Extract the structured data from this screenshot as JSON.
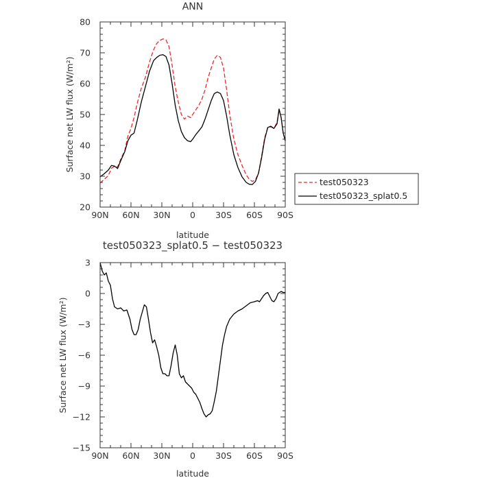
{
  "colors": {
    "series_test050323": "#e8282b",
    "series_splat": "#000000",
    "axis": "#333333"
  },
  "chart_data": [
    {
      "type": "line",
      "title": "ANN",
      "xlabel": "latitude",
      "ylabel": "Surface net LW flux (W/m²)",
      "x_ticks": [
        {
          "v": 90,
          "label": "90N"
        },
        {
          "v": 60,
          "label": "60N"
        },
        {
          "v": 30,
          "label": "30N"
        },
        {
          "v": 0,
          "label": "0"
        },
        {
          "v": -30,
          "label": "30S"
        },
        {
          "v": -60,
          "label": "60S"
        },
        {
          "v": -90,
          "label": "90S"
        }
      ],
      "xlim": [
        90,
        -90
      ],
      "ylim": [
        20,
        80
      ],
      "y_ticks": [
        20,
        30,
        40,
        50,
        60,
        70,
        80
      ],
      "legend_position": "right",
      "series": [
        {
          "name": "test050323",
          "style": "dashed",
          "points": [
            [
              90,
              27.8
            ],
            [
              86,
              29.0
            ],
            [
              82,
              30.2
            ],
            [
              79,
              32.6
            ],
            [
              76,
              33.2
            ],
            [
              73,
              33.0
            ],
            [
              70,
              35.5
            ],
            [
              66,
              38.3
            ],
            [
              63,
              43.0
            ],
            [
              60,
              45.5
            ],
            [
              57,
              49.0
            ],
            [
              54,
              53.5
            ],
            [
              50,
              58.5
            ],
            [
              46,
              62.0
            ],
            [
              42,
              67.0
            ],
            [
              38,
              71.0
            ],
            [
              35,
              73.0
            ],
            [
              32,
              74.0
            ],
            [
              29,
              74.5
            ],
            [
              26,
              74.2
            ],
            [
              23,
              72.0
            ],
            [
              20,
              66.0
            ],
            [
              17,
              59.0
            ],
            [
              14,
              54.0
            ],
            [
              11,
              50.0
            ],
            [
              8,
              48.5
            ],
            [
              5,
              49.5
            ],
            [
              2,
              49.0
            ],
            [
              0,
              50.0
            ],
            [
              -3,
              51.5
            ],
            [
              -6,
              53.0
            ],
            [
              -9,
              55.0
            ],
            [
              -12,
              58.0
            ],
            [
              -15,
              62.0
            ],
            [
              -18,
              65.0
            ],
            [
              -21,
              68.0
            ],
            [
              -24,
              69.2
            ],
            [
              -27,
              68.5
            ],
            [
              -30,
              65.0
            ],
            [
              -33,
              58.0
            ],
            [
              -36,
              50.0
            ],
            [
              -40,
              42.0
            ],
            [
              -44,
              37.0
            ],
            [
              -48,
              33.5
            ],
            [
              -52,
              30.5
            ],
            [
              -55,
              29.0
            ],
            [
              -58,
              28.3
            ],
            [
              -61,
              28.8
            ],
            [
              -64,
              31.0
            ],
            [
              -67,
              36.5
            ],
            [
              -70,
              42.5
            ],
            [
              -73,
              45.8
            ],
            [
              -76,
              46.0
            ],
            [
              -79,
              45.5
            ],
            [
              -82,
              47.5
            ],
            [
              -84,
              51.5
            ],
            [
              -86,
              49.0
            ],
            [
              -88,
              44.0
            ],
            [
              -90,
              41.5
            ]
          ]
        },
        {
          "name": "test050323_splat0.5",
          "style": "solid",
          "points": [
            [
              90,
              29.8
            ],
            [
              86,
              30.8
            ],
            [
              82,
              32.0
            ],
            [
              79,
              33.5
            ],
            [
              76,
              33.3
            ],
            [
              73,
              32.5
            ],
            [
              70,
              35.0
            ],
            [
              66,
              38.0
            ],
            [
              63,
              41.5
            ],
            [
              60,
              43.3
            ],
            [
              57,
              44.0
            ],
            [
              54,
              48.0
            ],
            [
              50,
              54.0
            ],
            [
              46,
              59.0
            ],
            [
              42,
              64.0
            ],
            [
              38,
              67.5
            ],
            [
              35,
              68.5
            ],
            [
              32,
              69.2
            ],
            [
              29,
              69.4
            ],
            [
              26,
              68.8
            ],
            [
              23,
              66.0
            ],
            [
              20,
              60.0
            ],
            [
              17,
              53.0
            ],
            [
              14,
              48.0
            ],
            [
              11,
              44.5
            ],
            [
              8,
              42.5
            ],
            [
              5,
              41.5
            ],
            [
              2,
              41.2
            ],
            [
              0,
              42.0
            ],
            [
              -3,
              43.5
            ],
            [
              -6,
              44.7
            ],
            [
              -9,
              46.0
            ],
            [
              -12,
              48.5
            ],
            [
              -15,
              51.5
            ],
            [
              -18,
              54.5
            ],
            [
              -21,
              56.8
            ],
            [
              -24,
              57.3
            ],
            [
              -27,
              56.8
            ],
            [
              -30,
              54.5
            ],
            [
              -33,
              49.5
            ],
            [
              -36,
              43.5
            ],
            [
              -40,
              37.0
            ],
            [
              -44,
              32.8
            ],
            [
              -48,
              29.8
            ],
            [
              -52,
              28.0
            ],
            [
              -55,
              27.4
            ],
            [
              -58,
              27.3
            ],
            [
              -61,
              28.3
            ],
            [
              -64,
              31.0
            ],
            [
              -67,
              36.0
            ],
            [
              -70,
              42.0
            ],
            [
              -73,
              45.8
            ],
            [
              -76,
              46.2
            ],
            [
              -79,
              45.5
            ],
            [
              -82,
              47.0
            ],
            [
              -84,
              51.8
            ],
            [
              -86,
              49.0
            ],
            [
              -88,
              44.0
            ],
            [
              -90,
              41.5
            ]
          ]
        }
      ]
    },
    {
      "type": "line",
      "title": "test050323_splat0.5 − test050323",
      "xlabel": "latitude",
      "ylabel": "Surface net LW flux (W/m²)",
      "x_ticks": [
        {
          "v": 90,
          "label": "90N"
        },
        {
          "v": 60,
          "label": "60N"
        },
        {
          "v": 30,
          "label": "30N"
        },
        {
          "v": 0,
          "label": "0"
        },
        {
          "v": -30,
          "label": "30S"
        },
        {
          "v": -60,
          "label": "60S"
        },
        {
          "v": -90,
          "label": "90S"
        }
      ],
      "xlim": [
        90,
        -90
      ],
      "ylim": [
        -15,
        3
      ],
      "y_ticks": [
        -15,
        -12,
        -9,
        -6,
        -3,
        0,
        3
      ],
      "series": [
        {
          "name": "",
          "style": "solid",
          "points": [
            [
              90,
              3.0
            ],
            [
              88,
              2.2
            ],
            [
              86,
              1.8
            ],
            [
              84,
              2.0
            ],
            [
              82,
              1.2
            ],
            [
              80,
              0.8
            ],
            [
              78,
              -0.5
            ],
            [
              76,
              -1.3
            ],
            [
              73,
              -1.5
            ],
            [
              70,
              -1.4
            ],
            [
              67,
              -1.7
            ],
            [
              64,
              -1.6
            ],
            [
              61,
              -2.5
            ],
            [
              59,
              -3.5
            ],
            [
              57,
              -4.0
            ],
            [
              55,
              -4.0
            ],
            [
              53,
              -3.5
            ],
            [
              51,
              -2.5
            ],
            [
              49,
              -1.8
            ],
            [
              47,
              -1.1
            ],
            [
              45,
              -1.3
            ],
            [
              43,
              -2.5
            ],
            [
              41,
              -3.8
            ],
            [
              39,
              -4.8
            ],
            [
              37,
              -4.5
            ],
            [
              35,
              -5.2
            ],
            [
              33,
              -6.0
            ],
            [
              31,
              -7.2
            ],
            [
              29,
              -7.8
            ],
            [
              27,
              -7.8
            ],
            [
              25,
              -8.0
            ],
            [
              23,
              -8.0
            ],
            [
              21,
              -7.0
            ],
            [
              19,
              -5.8
            ],
            [
              17,
              -5.0
            ],
            [
              15,
              -6.0
            ],
            [
              13,
              -7.8
            ],
            [
              11,
              -8.2
            ],
            [
              9,
              -8.0
            ],
            [
              7,
              -8.6
            ],
            [
              5,
              -8.8
            ],
            [
              3,
              -9.0
            ],
            [
              1,
              -9.2
            ],
            [
              -1,
              -9.6
            ],
            [
              -3,
              -9.8
            ],
            [
              -5,
              -10.2
            ],
            [
              -7,
              -10.6
            ],
            [
              -9,
              -11.2
            ],
            [
              -11,
              -11.7
            ],
            [
              -13,
              -12.0
            ],
            [
              -15,
              -11.8
            ],
            [
              -17,
              -11.7
            ],
            [
              -19,
              -11.4
            ],
            [
              -21,
              -10.5
            ],
            [
              -23,
              -9.5
            ],
            [
              -25,
              -8.0
            ],
            [
              -27,
              -6.5
            ],
            [
              -29,
              -5.0
            ],
            [
              -31,
              -4.0
            ],
            [
              -33,
              -3.2
            ],
            [
              -36,
              -2.5
            ],
            [
              -40,
              -2.0
            ],
            [
              -44,
              -1.7
            ],
            [
              -48,
              -1.5
            ],
            [
              -52,
              -1.2
            ],
            [
              -56,
              -0.9
            ],
            [
              -60,
              -0.8
            ],
            [
              -63,
              -0.7
            ],
            [
              -65,
              -0.8
            ],
            [
              -67,
              -0.5
            ],
            [
              -69,
              -0.2
            ],
            [
              -71,
              0.0
            ],
            [
              -73,
              0.1
            ],
            [
              -75,
              -0.3
            ],
            [
              -77,
              -0.7
            ],
            [
              -79,
              -0.8
            ],
            [
              -81,
              -0.5
            ],
            [
              -83,
              0.0
            ],
            [
              -86,
              0.2
            ],
            [
              -88,
              0.1
            ],
            [
              -90,
              0.1
            ]
          ]
        }
      ]
    }
  ]
}
